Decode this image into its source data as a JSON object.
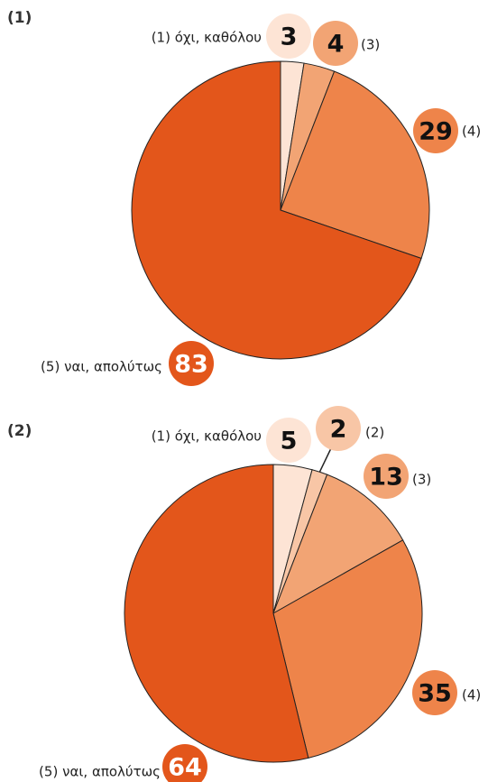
{
  "chart_data": [
    {
      "type": "pie",
      "title": "(1)",
      "categories": [
        "(1) όχι, καθόλου",
        "(3)",
        "(4)",
        "(5) ναι, απολύτως"
      ],
      "values": [
        3,
        4,
        29,
        83
      ],
      "colors": [
        "#fde4d5",
        "#f2a474",
        "#ee844a",
        "#e3561b"
      ]
    },
    {
      "type": "pie",
      "title": "(2)",
      "categories": [
        "(1) όχι, καθόλου",
        "(2)",
        "(3)",
        "(4)",
        "(5) ναι, απολύτως"
      ],
      "values": [
        5,
        2,
        13,
        35,
        64
      ],
      "colors": [
        "#fde4d5",
        "#f8c6a6",
        "#f2a474",
        "#ee844a",
        "#e3561b"
      ]
    }
  ]
}
